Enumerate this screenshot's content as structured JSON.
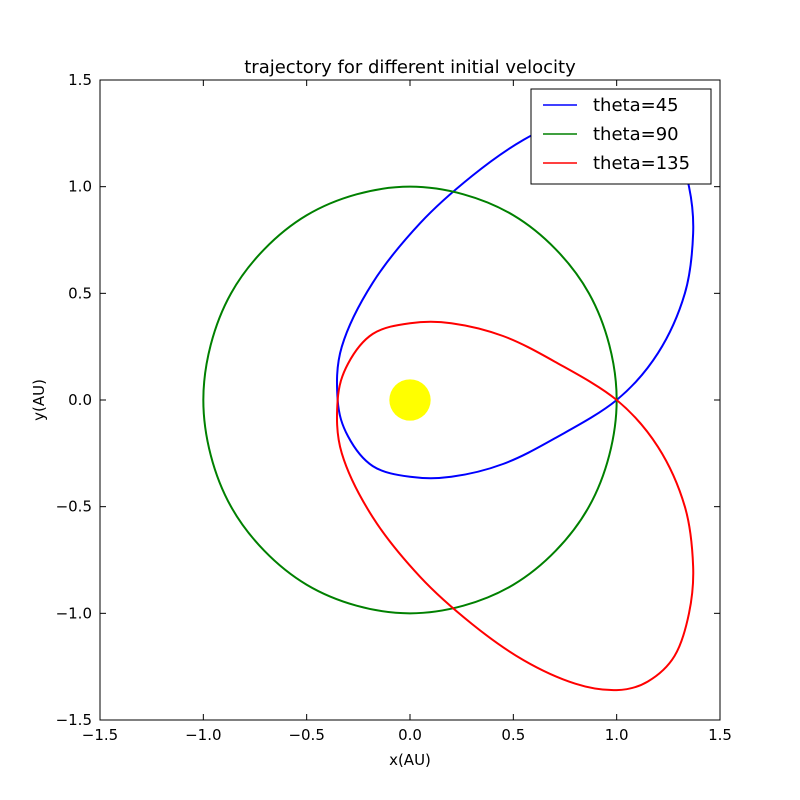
{
  "chart_data": {
    "type": "line",
    "title": "trajectory for different initial velocity",
    "xlabel": "x(AU)",
    "ylabel": "y(AU)",
    "xlim": [
      -1.5,
      1.5
    ],
    "ylim": [
      -1.5,
      1.5
    ],
    "x_ticks": [
      "−1.5",
      "−1.0",
      "−0.5",
      "0.0",
      "0.5",
      "1.0",
      "1.5"
    ],
    "y_ticks": [
      "−1.5",
      "−1.0",
      "−0.5",
      "0.0",
      "0.5",
      "1.0",
      "1.5"
    ],
    "grid": false,
    "legend_position": "top-right",
    "sun": {
      "x": 0,
      "y": 0,
      "radius": 0.1,
      "color": "#ffff00"
    },
    "series": [
      {
        "name": "theta=45",
        "color": "#0000ff",
        "x": [
          1.0,
          1.2,
          1.33,
          1.37,
          1.35,
          1.28,
          1.15,
          1.0,
          0.8,
          0.55,
          0.3,
          0.05,
          -0.18,
          -0.33,
          -0.35,
          -0.3,
          -0.18,
          0.0,
          0.2,
          0.45,
          0.7,
          1.0
        ],
        "y": [
          0.0,
          0.22,
          0.5,
          0.78,
          1.0,
          1.2,
          1.32,
          1.36,
          1.33,
          1.22,
          1.05,
          0.83,
          0.55,
          0.25,
          0.0,
          -0.17,
          -0.31,
          -0.36,
          -0.36,
          -0.3,
          -0.18,
          0.0
        ]
      },
      {
        "name": "theta=90",
        "color": "#008000",
        "x": [
          1.0,
          0.866,
          0.5,
          0.0,
          -0.5,
          -0.866,
          -1.0,
          -0.866,
          -0.5,
          0.0,
          0.5,
          0.866,
          1.0
        ],
        "y": [
          0.0,
          0.5,
          0.866,
          1.0,
          0.866,
          0.5,
          0.0,
          -0.5,
          -0.866,
          -1.0,
          -0.866,
          -0.5,
          0.0
        ]
      },
      {
        "name": "theta=135",
        "color": "#ff0000",
        "x": [
          1.0,
          0.7,
          0.45,
          0.2,
          0.0,
          -0.18,
          -0.3,
          -0.35,
          -0.33,
          -0.18,
          0.05,
          0.3,
          0.55,
          0.8,
          1.0,
          1.15,
          1.28,
          1.35,
          1.37,
          1.33,
          1.2,
          1.0
        ],
        "y": [
          0.0,
          0.18,
          0.3,
          0.36,
          0.36,
          0.31,
          0.17,
          0.0,
          -0.25,
          -0.55,
          -0.83,
          -1.05,
          -1.22,
          -1.33,
          -1.36,
          -1.32,
          -1.2,
          -1.0,
          -0.78,
          -0.5,
          -0.22,
          0.0
        ]
      }
    ]
  }
}
